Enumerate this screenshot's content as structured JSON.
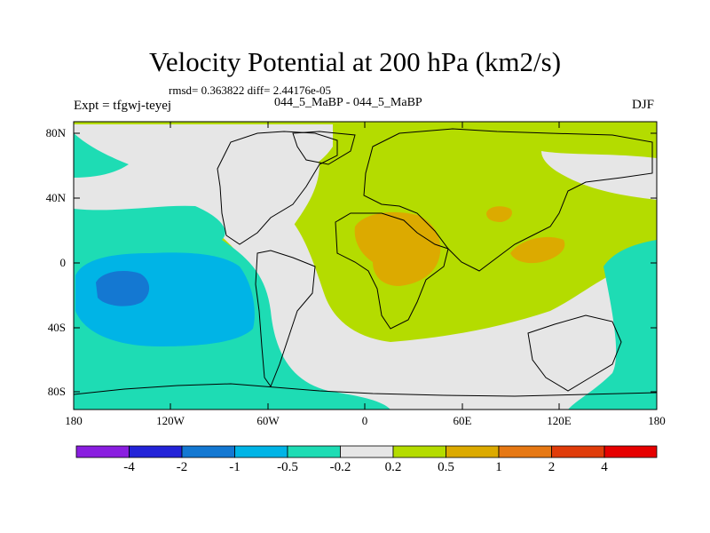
{
  "title": "Velocity Potential at 200 hPa (km2/s)",
  "stats": "rmsd= 0.363822 diff= 2.44176e-05",
  "experiment": "Expt = tfgwj-teyej",
  "cases": "044_5_MaBP - 044_5_MaBP",
  "season": "DJF",
  "lat_ticks": [
    "80N",
    "40N",
    "0",
    "40S",
    "80S"
  ],
  "lon_ticks": [
    "180",
    "120W",
    "60W",
    "0",
    "60E",
    "120E",
    "180"
  ],
  "colorbar": {
    "labels": [
      "-4",
      "-2",
      "-1",
      "-0.5",
      "-0.2",
      "0.2",
      "0.5",
      "1",
      "2",
      "4"
    ],
    "colors": [
      "#8a1ee0",
      "#2323d8",
      "#1478d2",
      "#00b4e6",
      "#1edcb4",
      "#e6e6e6",
      "#b4dc00",
      "#dcaa00",
      "#e67814",
      "#e03c0a",
      "#e60000"
    ]
  }
}
